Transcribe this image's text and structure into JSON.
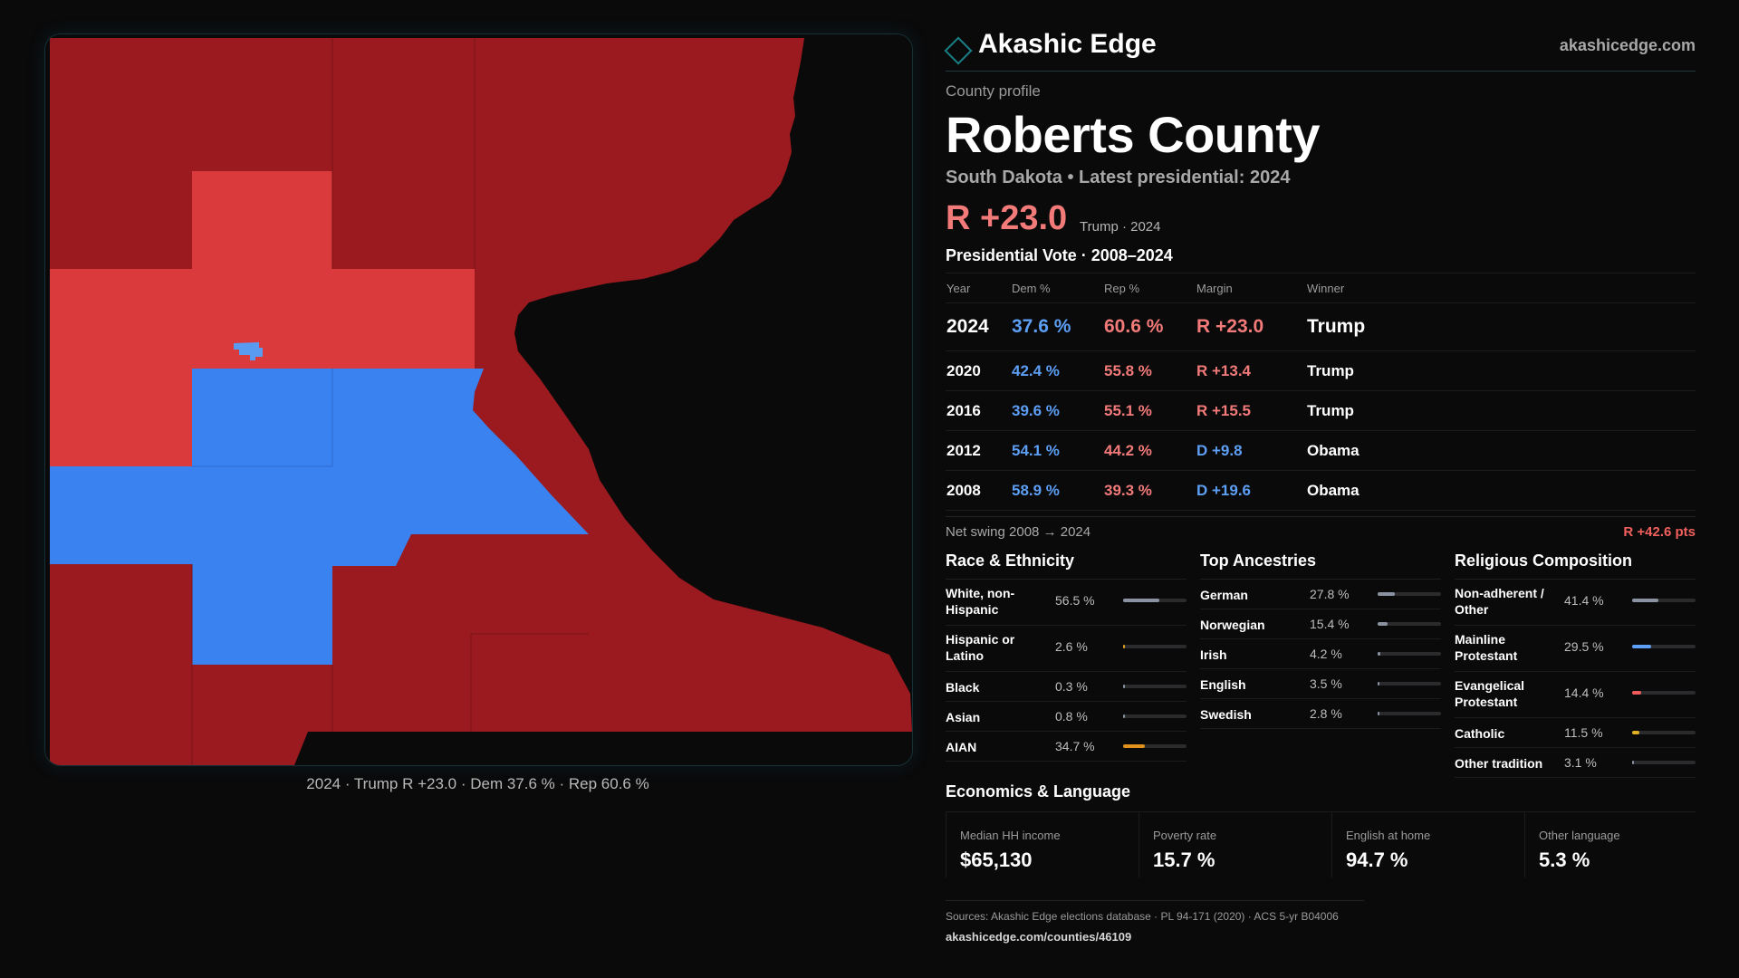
{
  "brand": {
    "name": "Akashic Edge",
    "url": "akashicedge.com"
  },
  "profile": {
    "eyebrow": "County profile",
    "title": "Roberts County",
    "subtitle": "South Dakota • Latest presidential: 2024",
    "margin": "R +23.0",
    "margin_note": "Trump · 2024"
  },
  "map": {
    "caption": "2024 · Trump R +23.0 · Dem 37.6 % · Rep 60.6 %",
    "colors": {
      "strong_rep": "#9b1a1f",
      "lean_rep": "#db3a3d",
      "dem": "#3b82f1",
      "dem_light": "#5a9bf2",
      "water": "#0a0a0b"
    }
  },
  "vote": {
    "title": "Presidential Vote · 2008–2024",
    "headers": {
      "year": "Year",
      "dem": "Dem %",
      "rep": "Rep %",
      "margin": "Margin",
      "winner": "Winner"
    },
    "rows": [
      {
        "year": "2024",
        "dem": "37.6 %",
        "rep": "60.6 %",
        "margin": "R +23.0",
        "winner": "Trump"
      },
      {
        "year": "2020",
        "dem": "42.4 %",
        "rep": "55.8 %",
        "margin": "R +13.4",
        "winner": "Trump"
      },
      {
        "year": "2016",
        "dem": "39.6 %",
        "rep": "55.1 %",
        "margin": "R +15.5",
        "winner": "Trump"
      },
      {
        "year": "2012",
        "dem": "54.1 %",
        "rep": "44.2 %",
        "margin": "D +9.8",
        "winner": "Obama"
      },
      {
        "year": "2008",
        "dem": "58.9 %",
        "rep": "39.3 %",
        "margin": "D +19.6",
        "winner": "Obama"
      }
    ],
    "swing_label": "Net swing 2008 → 2024",
    "swing_value": "R +42.6 pts"
  },
  "race": {
    "title": "Race & Ethnicity",
    "items": [
      {
        "label": "White, non-Hispanic",
        "value": "56.5 %",
        "pct": 56.5
      },
      {
        "label": "Hispanic or Latino",
        "value": "2.6 %",
        "pct": 2.6
      },
      {
        "label": "Black",
        "value": "0.3 %",
        "pct": 0.3
      },
      {
        "label": "Asian",
        "value": "0.8 %",
        "pct": 0.8
      },
      {
        "label": "AIAN",
        "value": "34.7 %",
        "pct": 34.7
      }
    ]
  },
  "ancestry": {
    "title": "Top Ancestries",
    "items": [
      {
        "label": "German",
        "value": "27.8 %",
        "pct": 27.8
      },
      {
        "label": "Norwegian",
        "value": "15.4 %",
        "pct": 15.4
      },
      {
        "label": "Irish",
        "value": "4.2 %",
        "pct": 4.2
      },
      {
        "label": "English",
        "value": "3.5 %",
        "pct": 3.5
      },
      {
        "label": "Swedish",
        "value": "2.8 %",
        "pct": 2.8
      }
    ]
  },
  "religion": {
    "title": "Religious Composition",
    "items": [
      {
        "label": "Non-adherent / Other",
        "value": "41.4 %",
        "pct": 41.4
      },
      {
        "label": "Mainline Protestant",
        "value": "29.5 %",
        "pct": 29.5
      },
      {
        "label": "Evangelical Protestant",
        "value": "14.4 %",
        "pct": 14.4
      },
      {
        "label": "Catholic",
        "value": "11.5 %",
        "pct": 11.5
      },
      {
        "label": "Other tradition",
        "value": "3.1 %",
        "pct": 3.1
      }
    ]
  },
  "economics": {
    "title": "Economics & Language",
    "items": [
      {
        "label": "Median HH income",
        "value": "$65,130"
      },
      {
        "label": "Poverty rate",
        "value": "15.7 %"
      },
      {
        "label": "English at home",
        "value": "94.7 %"
      },
      {
        "label": "Other language",
        "value": "5.3 %"
      }
    ]
  },
  "sources": {
    "line1": "Sources: Akashic Edge elections database · PL 94-171 (2020) · ACS 5-yr B04006",
    "line2": "akashicedge.com/counties/46109"
  }
}
